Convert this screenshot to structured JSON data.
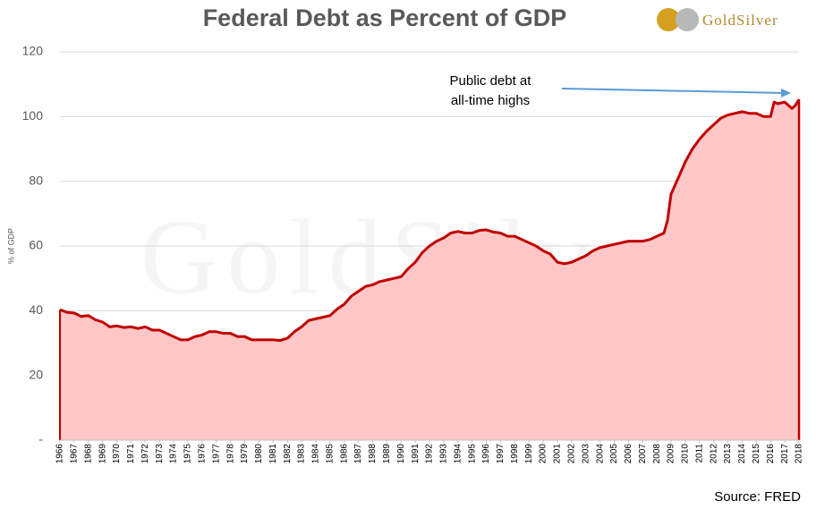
{
  "chart_data": {
    "type": "area",
    "title": "Federal Debt as Percent of GDP",
    "logo": "GoldSilver",
    "y_label": "% of GDP",
    "source": "Source: FRED",
    "annotation": [
      "Public debt at",
      "all-time highs"
    ],
    "x": [
      1966,
      1966.5,
      1967,
      1967.5,
      1968,
      1968.5,
      1969,
      1969.5,
      1970,
      1970.5,
      1971,
      1971.5,
      1972,
      1972.5,
      1973,
      1973.5,
      1974,
      1974.5,
      1975,
      1975.5,
      1976,
      1976.5,
      1977,
      1977.5,
      1978,
      1978.5,
      1979,
      1979.5,
      1980,
      1980.5,
      1981,
      1981.5,
      1982,
      1982.5,
      1983,
      1983.5,
      1984,
      1984.5,
      1985,
      1985.5,
      1986,
      1986.5,
      1987,
      1987.5,
      1988,
      1988.5,
      1989,
      1989.5,
      1990,
      1990.5,
      1991,
      1991.5,
      1992,
      1992.5,
      1993,
      1993.5,
      1994,
      1994.5,
      1995,
      1995.5,
      1996,
      1996.5,
      1997,
      1997.5,
      1998,
      1998.5,
      1999,
      1999.5,
      2000,
      2000.5,
      2001,
      2001.5,
      2002,
      2002.5,
      2003,
      2003.5,
      2004,
      2004.5,
      2005,
      2005.5,
      2006,
      2006.5,
      2007,
      2007.5,
      2008,
      2008.5,
      2008.75,
      2009,
      2009.5,
      2010,
      2010.5,
      2011,
      2011.5,
      2012,
      2012.5,
      2013,
      2013.5,
      2014,
      2014.5,
      2015,
      2015.5,
      2016,
      2016.25,
      2016.5,
      2017,
      2017.25,
      2017.5,
      2017.75,
      2018
    ],
    "values": [
      40.3,
      39.5,
      39.3,
      38.2,
      38.5,
      37.2,
      36.5,
      35,
      35.3,
      34.8,
      35,
      34.5,
      35,
      34,
      34,
      33,
      32,
      31,
      31,
      32,
      32.5,
      33.5,
      33.5,
      33,
      33,
      32,
      32,
      31,
      31,
      31,
      31,
      30.8,
      31.5,
      33.5,
      35,
      37,
      37.5,
      38,
      38.5,
      40.5,
      42,
      44.5,
      46,
      47.5,
      48,
      49,
      49.5,
      50,
      50.5,
      53,
      55,
      58,
      60,
      61.5,
      62.5,
      64,
      64.5,
      64,
      64,
      64.8,
      65,
      64.3,
      64,
      63,
      63,
      62,
      61,
      60,
      58.5,
      57.5,
      55,
      54.5,
      55,
      56,
      57,
      58.5,
      59.5,
      60,
      60.5,
      61,
      61.5,
      61.5,
      61.5,
      62,
      63,
      64,
      68,
      76,
      81,
      86,
      90,
      93,
      95.5,
      97.5,
      99.5,
      100.5,
      101,
      101.5,
      101,
      101,
      100,
      100,
      104.5,
      104,
      104.5,
      103.5,
      102.5,
      103.5,
      105.3
    ],
    "xlim": [
      1966,
      2018
    ],
    "xticks": [
      1966,
      1967,
      1968,
      1969,
      1970,
      1971,
      1972,
      1973,
      1974,
      1975,
      1976,
      1977,
      1978,
      1979,
      1980,
      1981,
      1982,
      1983,
      1984,
      1985,
      1986,
      1987,
      1988,
      1989,
      1990,
      1991,
      1992,
      1993,
      1994,
      1995,
      1996,
      1997,
      1998,
      1999,
      2000,
      2001,
      2002,
      2003,
      2004,
      2005,
      2006,
      2007,
      2008,
      2009,
      2010,
      2011,
      2012,
      2013,
      2014,
      2015,
      2016,
      2017,
      2018
    ],
    "ylim": [
      0,
      120
    ],
    "yticks": [
      {
        "value": 0,
        "label": "-"
      },
      20,
      40,
      60,
      80,
      100,
      120
    ],
    "color": "#c00000",
    "fill": "#ffc7c7",
    "grid": true
  }
}
